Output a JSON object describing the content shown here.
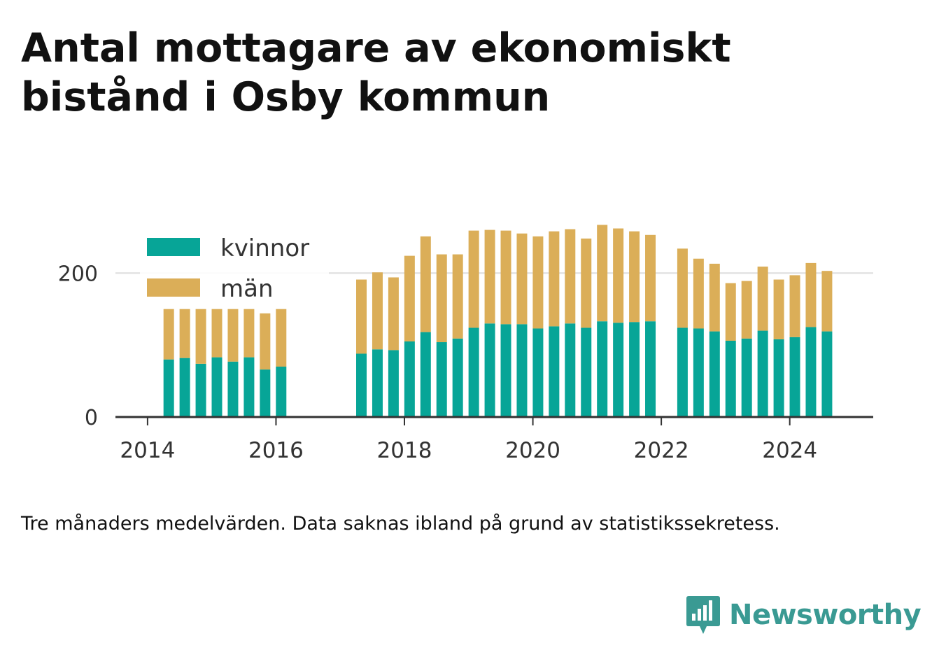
{
  "title": "Antal mottagare av ekonomiskt bistånd i Osby kommun",
  "footnote": "Tre månaders medelvärden. Data saknas ibland på grund av statistikssekretess.",
  "brand": {
    "name": "Newsworthy",
    "logo_icon": "bar-chart-speech-bubble-icon"
  },
  "colors": {
    "kvinnor": "#07a597",
    "man": "#dbae58",
    "grid": "#dddddd",
    "axis": "#333333",
    "text": "#333333"
  },
  "chart_data": {
    "type": "bar",
    "stacked": true,
    "title": "Antal mottagare av ekonomiskt bistånd i Osby kommun",
    "xlabel": "",
    "ylabel": "",
    "ylim": [
      0,
      280
    ],
    "xlim": [
      2013.5,
      2025.3
    ],
    "y_ticks": [
      {
        "value": 0,
        "label": "0"
      },
      {
        "value": 200,
        "label": "200"
      }
    ],
    "x_ticks": [
      {
        "value": 2014,
        "label": "2014"
      },
      {
        "value": 2016,
        "label": "2016"
      },
      {
        "value": 2018,
        "label": "2018"
      },
      {
        "value": 2020,
        "label": "2020"
      },
      {
        "value": 2022,
        "label": "2022"
      },
      {
        "value": 2024,
        "label": "2024"
      }
    ],
    "grid": true,
    "legend_position": "top-left",
    "x": [
      2014.33,
      2014.58,
      2014.83,
      2015.08,
      2015.33,
      2015.58,
      2015.83,
      2016.08,
      2017.33,
      2017.58,
      2017.83,
      2018.08,
      2018.33,
      2018.58,
      2018.83,
      2019.08,
      2019.33,
      2019.58,
      2019.83,
      2020.08,
      2020.33,
      2020.58,
      2020.83,
      2021.08,
      2021.33,
      2021.58,
      2021.83,
      2022.33,
      2022.58,
      2022.83,
      2023.08,
      2023.33,
      2023.58,
      2023.83,
      2024.08,
      2024.33,
      2024.58
    ],
    "series": [
      {
        "name": "kvinnor",
        "color": "#07a597",
        "values": [
          80,
          82,
          74,
          83,
          77,
          83,
          66,
          70,
          88,
          94,
          93,
          105,
          118,
          104,
          109,
          124,
          130,
          129,
          129,
          123,
          126,
          130,
          124,
          133,
          131,
          132,
          133,
          124,
          123,
          119,
          106,
          109,
          120,
          108,
          111,
          125,
          119
        ]
      },
      {
        "name": "män",
        "color": "#dbae58",
        "values": [
          70,
          68,
          76,
          67,
          73,
          67,
          78,
          80,
          103,
          107,
          101,
          119,
          133,
          122,
          117,
          135,
          130,
          130,
          126,
          128,
          132,
          131,
          124,
          134,
          131,
          126,
          120,
          110,
          97,
          94,
          80,
          80,
          89,
          83,
          86,
          89,
          84
        ]
      }
    ]
  }
}
